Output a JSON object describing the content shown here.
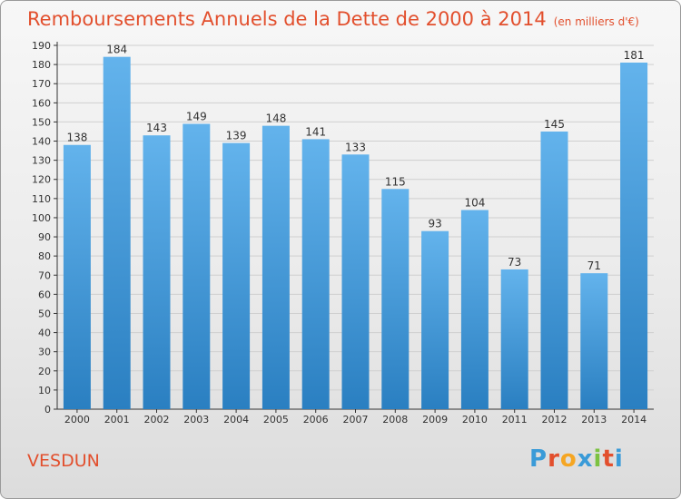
{
  "header": {
    "title": "Remboursements Annuels de la Dette de 2000 à 2014",
    "subtitle": "(en milliers d'€)"
  },
  "footer": {
    "commune": "VESDUN",
    "logo": "Proxiti",
    "logo_colors": [
      "#3a9bd8",
      "#e24f2d",
      "#f5a623",
      "#3a9bd8",
      "#7cc242",
      "#e24f2d",
      "#3a9bd8"
    ]
  },
  "colors": {
    "bar_light": "#63b3ec",
    "bar_dark": "#2a7fc1",
    "title": "#e24f2d",
    "axis": "#333333",
    "grid": "#cfcfcf"
  },
  "chart_data": {
    "type": "bar",
    "title": "Remboursements Annuels de la Dette de 2000 à 2014",
    "subtitle": "(en milliers d'€)",
    "categories": [
      "2000",
      "2001",
      "2002",
      "2003",
      "2004",
      "2005",
      "2006",
      "2007",
      "2008",
      "2009",
      "2010",
      "2011",
      "2012",
      "2013",
      "2014"
    ],
    "values": [
      138,
      184,
      143,
      149,
      139,
      148,
      141,
      133,
      115,
      93,
      104,
      73,
      145,
      71,
      181
    ],
    "ylim": [
      0,
      190
    ],
    "ytick_step": 10,
    "grid": true
  }
}
